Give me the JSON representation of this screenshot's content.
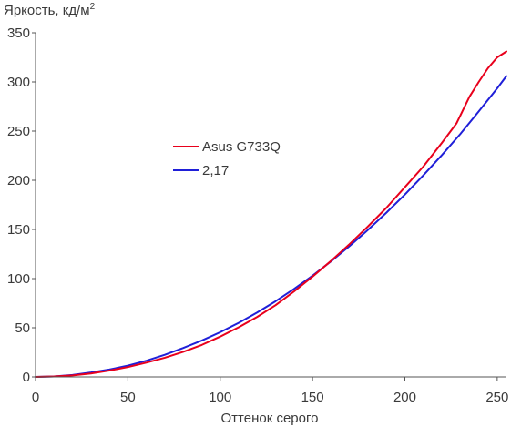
{
  "chart_data": {
    "type": "line",
    "ylabel": "Яркость, кд/м",
    "ylabel_sup": "2",
    "xlabel": "Оттенок серого",
    "xlim": [
      0,
      255
    ],
    "ylim": [
      0,
      350
    ],
    "xticks": [
      0,
      50,
      100,
      150,
      200,
      250
    ],
    "yticks": [
      0,
      50,
      100,
      150,
      200,
      250,
      300,
      350
    ],
    "grid": false,
    "legend_placement": "center-left",
    "series": [
      {
        "name": "Asus G733Q",
        "color": "#e8001c",
        "x": [
          0,
          10,
          20,
          30,
          40,
          50,
          60,
          70,
          80,
          90,
          100,
          110,
          120,
          130,
          140,
          150,
          160,
          170,
          180,
          190,
          200,
          210,
          220,
          228,
          235,
          240,
          245,
          250,
          255
        ],
        "y": [
          0,
          0.5,
          1.5,
          3.5,
          6.5,
          10,
          14.5,
          19.5,
          25.5,
          32.5,
          41,
          50.5,
          61,
          73,
          87,
          102,
          118,
          135,
          153,
          172,
          193,
          214,
          238,
          258,
          285,
          300,
          314,
          325,
          331
        ]
      },
      {
        "name": "2,17",
        "color": "#1f1fd8",
        "x": [
          0,
          10,
          20,
          30,
          40,
          50,
          60,
          70,
          80,
          90,
          100,
          110,
          120,
          130,
          140,
          150,
          160,
          170,
          180,
          190,
          200,
          210,
          220,
          230,
          240,
          250,
          255
        ],
        "y": [
          0,
          0.5,
          2,
          4.5,
          7.5,
          11.5,
          16.5,
          22.5,
          29.5,
          37,
          45.5,
          55,
          65.5,
          77,
          89.5,
          103,
          117.5,
          133,
          149.5,
          167,
          185.5,
          205,
          225.5,
          247,
          270,
          293.5,
          306
        ]
      }
    ]
  }
}
